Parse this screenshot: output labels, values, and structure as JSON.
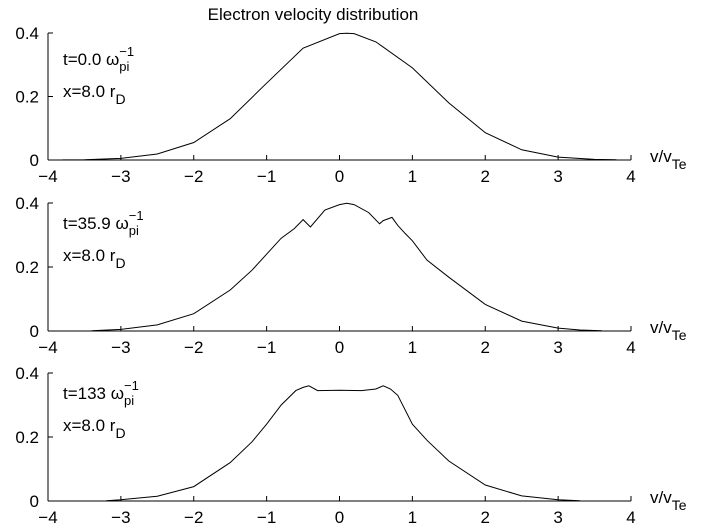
{
  "figure_title": "Electron velocity distribution",
  "chart_data": [
    {
      "type": "line",
      "xlim": [
        -4,
        4
      ],
      "ylim": [
        0,
        0.4
      ],
      "x_ticks": [
        -4,
        -3,
        -2,
        -1,
        0,
        1,
        2,
        3,
        4
      ],
      "x_tick_labels": [
        "−4",
        "−3",
        "−2",
        "−1",
        "0",
        "1",
        "2",
        "3",
        "4"
      ],
      "y_ticks": [
        0,
        0.2,
        0.4
      ],
      "y_tick_labels": [
        "0",
        "0.2",
        "0.4"
      ],
      "xlabel": {
        "main": "v/v",
        "sub": "Te"
      },
      "annotations": [
        {
          "main": "t=0.0 ω",
          "sup": "−1",
          "sub": "pi"
        },
        {
          "main": "x=8.0 r",
          "sub": "D"
        }
      ],
      "series": [
        {
          "x": [
            -3.8,
            -3.5,
            -3.0,
            -2.5,
            -2.0,
            -1.5,
            -1.0,
            -0.5,
            0.0,
            0.1,
            0.2,
            0.5,
            1.0,
            1.5,
            2.0,
            2.5,
            3.0,
            3.5,
            3.8
          ],
          "y": [
            0.0003,
            0.001,
            0.005,
            0.019,
            0.055,
            0.13,
            0.242,
            0.352,
            0.398,
            0.399,
            0.398,
            0.372,
            0.29,
            0.18,
            0.086,
            0.032,
            0.009,
            0.002,
            0.0006
          ]
        }
      ]
    },
    {
      "type": "line",
      "xlim": [
        -4,
        4
      ],
      "ylim": [
        0,
        0.4
      ],
      "x_ticks": [
        -4,
        -3,
        -2,
        -1,
        0,
        1,
        2,
        3,
        4
      ],
      "x_tick_labels": [
        "−4",
        "−3",
        "−2",
        "−1",
        "0",
        "1",
        "2",
        "3",
        "4"
      ],
      "y_ticks": [
        0,
        0.2,
        0.4
      ],
      "y_tick_labels": [
        "0",
        "0.2",
        "0.4"
      ],
      "xlabel": {
        "main": "v/v",
        "sub": "Te"
      },
      "annotations": [
        {
          "main": "t=35.9 ω",
          "sup": "−1",
          "sub": "pi"
        },
        {
          "main": "x=8.0 r",
          "sub": "D"
        }
      ],
      "series": [
        {
          "x": [
            -3.4,
            -3.0,
            -2.5,
            -2.0,
            -1.5,
            -1.2,
            -1.0,
            -0.8,
            -0.62,
            -0.5,
            -0.4,
            -0.2,
            0.0,
            0.1,
            0.2,
            0.4,
            0.55,
            0.6,
            0.72,
            0.8,
            0.9,
            1.0,
            1.2,
            1.5,
            2.0,
            2.5,
            3.0,
            3.3,
            3.6
          ],
          "y": [
            0.0008,
            0.005,
            0.019,
            0.054,
            0.128,
            0.19,
            0.24,
            0.29,
            0.32,
            0.348,
            0.325,
            0.378,
            0.395,
            0.399,
            0.395,
            0.37,
            0.335,
            0.345,
            0.355,
            0.33,
            0.305,
            0.282,
            0.222,
            0.168,
            0.083,
            0.031,
            0.009,
            0.003,
            0.0005
          ]
        }
      ]
    },
    {
      "type": "line",
      "xlim": [
        -4,
        4
      ],
      "ylim": [
        0,
        0.4
      ],
      "x_ticks": [
        -4,
        -3,
        -2,
        -1,
        0,
        1,
        2,
        3,
        4
      ],
      "x_tick_labels": [
        "−4",
        "−3",
        "−2",
        "−1",
        "0",
        "1",
        "2",
        "3",
        "4"
      ],
      "y_ticks": [
        0,
        0.2,
        0.4
      ],
      "y_tick_labels": [
        "0",
        "0.2",
        "0.4"
      ],
      "xlabel": {
        "main": "v/v",
        "sub": "Te"
      },
      "annotations": [
        {
          "main": "t=133 ω",
          "sup": "−1",
          "sub": "pi"
        },
        {
          "main": "x=8.0 r",
          "sub": "D"
        }
      ],
      "series": [
        {
          "x": [
            -3.2,
            -3.0,
            -2.5,
            -2.0,
            -1.5,
            -1.2,
            -1.0,
            -0.8,
            -0.6,
            -0.5,
            -0.42,
            -0.3,
            0.0,
            0.3,
            0.5,
            0.6,
            0.7,
            0.8,
            1.0,
            1.2,
            1.5,
            2.0,
            2.5,
            3.0,
            3.3
          ],
          "y": [
            0.001,
            0.004,
            0.015,
            0.045,
            0.12,
            0.185,
            0.24,
            0.3,
            0.345,
            0.355,
            0.36,
            0.345,
            0.346,
            0.345,
            0.35,
            0.36,
            0.35,
            0.33,
            0.24,
            0.19,
            0.125,
            0.05,
            0.016,
            0.004,
            0.001
          ]
        }
      ]
    }
  ]
}
